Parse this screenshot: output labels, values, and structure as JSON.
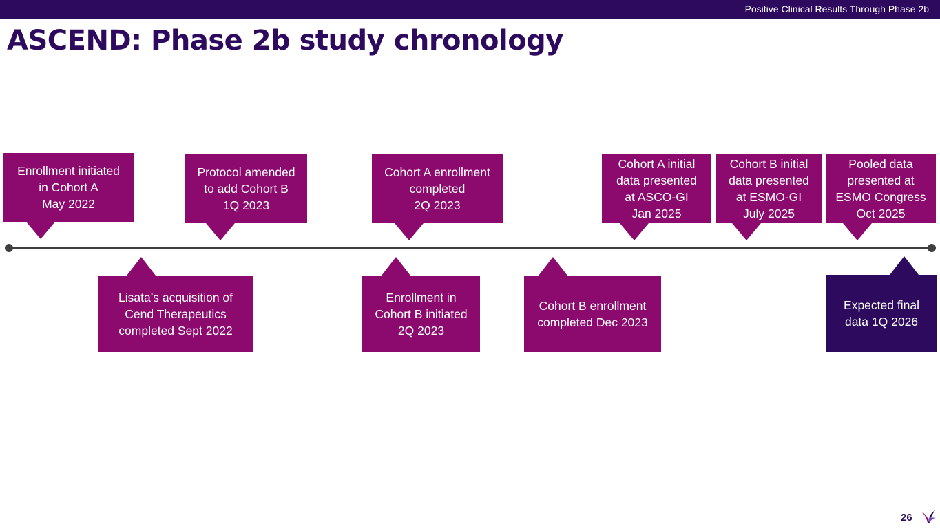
{
  "header": {
    "section_label": "Positive Clinical Results Through Phase 2b"
  },
  "title": "ASCEND: Phase 2b study chronology",
  "timeline": {
    "above": [
      {
        "text": "Enrollment initiated\nin Cohort A\nMay 2022"
      },
      {
        "text": "Protocol amended\nto add Cohort B\n1Q 2023"
      },
      {
        "text": "Cohort A enrollment\ncompleted\n2Q 2023"
      },
      {
        "text": "Cohort A initial\ndata presented\nat ASCO-GI\nJan 2025"
      },
      {
        "text": "Cohort B initial\ndata presented\nat ESMO-GI\nJuly 2025"
      },
      {
        "text": "Pooled data\npresented at\nESMO Congress\nOct 2025"
      }
    ],
    "below": [
      {
        "text": "Lisata’s acquisition of\nCend Therapeutics\ncompleted Sept 2022"
      },
      {
        "text": "Enrollment in\nCohort B initiated\n2Q 2023"
      },
      {
        "text": "Cohort B enrollment\ncompleted Dec 2023"
      },
      {
        "text": "Expected final\ndata 1Q 2026"
      }
    ]
  },
  "footer": {
    "page_number": "26"
  },
  "colors": {
    "brand_dark_purple": "#2e0a5e",
    "callout_magenta": "#8c0a6e",
    "timeline_gray": "#3f3f3f"
  },
  "icons": {
    "logo": "lisata-logo-icon"
  }
}
